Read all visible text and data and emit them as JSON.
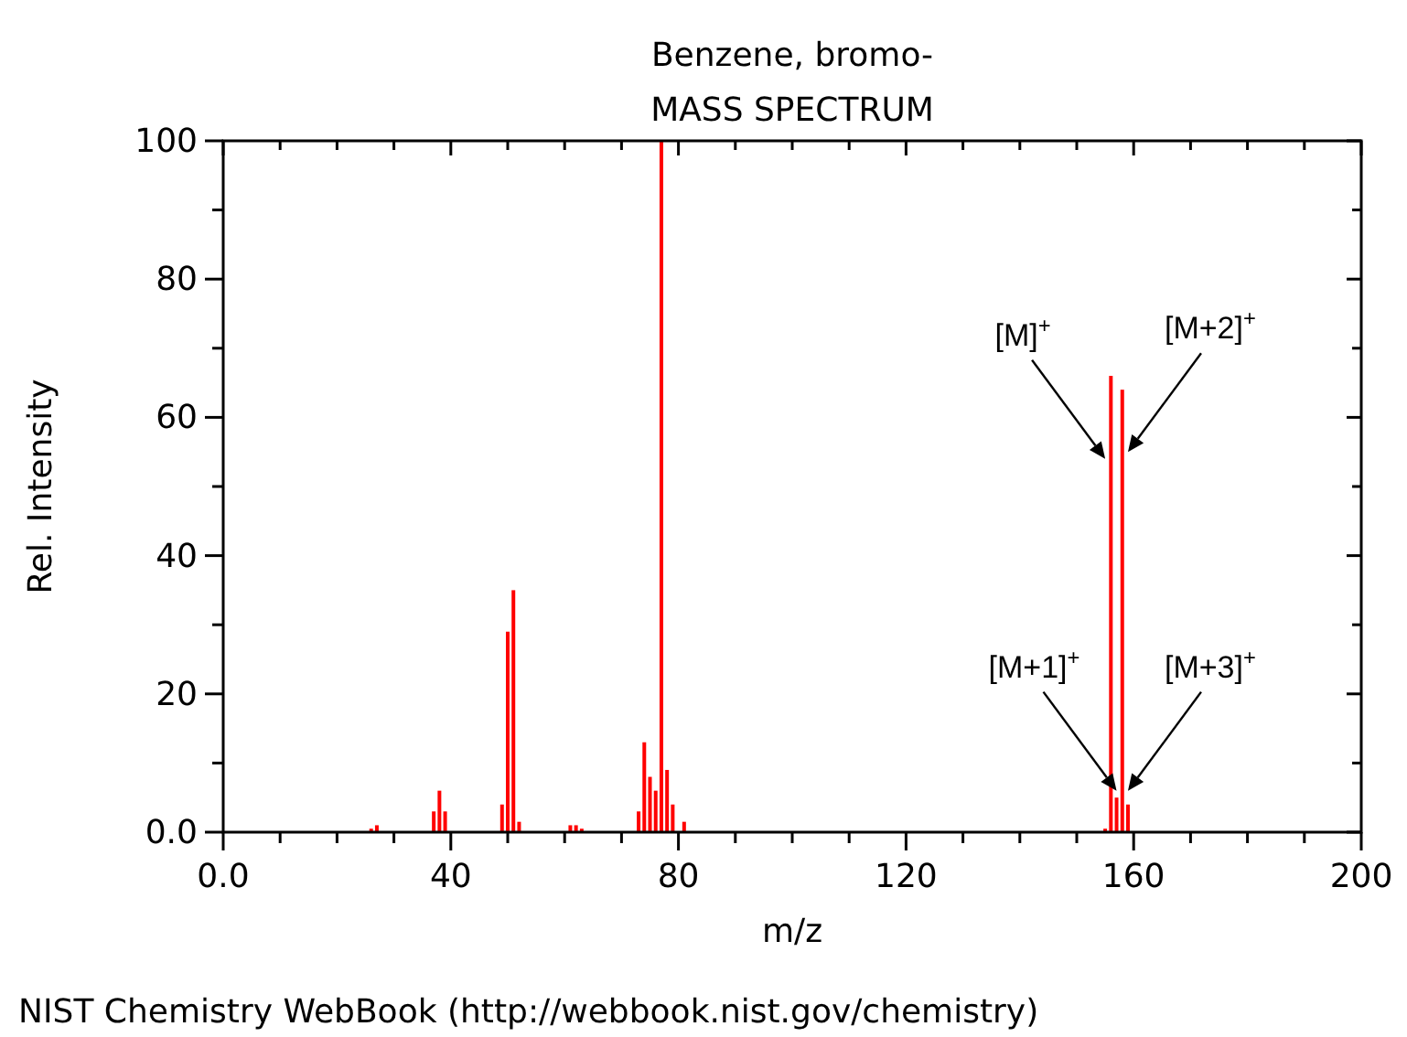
{
  "chart_data": {
    "type": "bar",
    "title": "Benzene, bromo-",
    "subtitle": "MASS SPECTRUM",
    "xlabel": "m/z",
    "ylabel": "Rel. Intensity",
    "x": [
      26,
      27,
      37,
      38,
      39,
      49,
      50,
      51,
      52,
      61,
      62,
      63,
      73,
      74,
      75,
      76,
      77,
      78,
      79,
      81,
      155,
      156,
      157,
      158,
      159
    ],
    "values": [
      0.5,
      1,
      3,
      6,
      3,
      4,
      29,
      35,
      1.5,
      1,
      1,
      0.5,
      3,
      13,
      8,
      6,
      100,
      9,
      4,
      1.5,
      0.5,
      66,
      5,
      64,
      4
    ],
    "color": "#ff0000",
    "xlim": [
      0,
      200
    ],
    "xticks": [
      {
        "value": 0,
        "label": "0.0"
      },
      {
        "value": 10,
        "label": null
      },
      {
        "value": 20,
        "label": null
      },
      {
        "value": 30,
        "label": null
      },
      40,
      {
        "value": 50,
        "label": null
      },
      {
        "value": 60,
        "label": null
      },
      {
        "value": 70,
        "label": null
      },
      80,
      {
        "value": 90,
        "label": null
      },
      {
        "value": 100,
        "label": null
      },
      {
        "value": 110,
        "label": null
      },
      120,
      {
        "value": 130,
        "label": null
      },
      {
        "value": 140,
        "label": null
      },
      {
        "value": 150,
        "label": null
      },
      160,
      {
        "value": 170,
        "label": null
      },
      {
        "value": 180,
        "label": null
      },
      {
        "value": 190,
        "label": null
      },
      200
    ],
    "ylim": [
      0,
      100
    ],
    "yticks": [
      {
        "value": 0,
        "label": "0.0"
      },
      {
        "value": 10,
        "label": null
      },
      20,
      {
        "value": 30,
        "label": null
      },
      40,
      {
        "value": 50,
        "label": null
      },
      60,
      {
        "value": 70,
        "label": null
      },
      80,
      {
        "value": 90,
        "label": null
      },
      100
    ],
    "grid": false,
    "annotations": [
      {
        "text": "[M]$^{+}$",
        "x": 155,
        "y": 54
      },
      {
        "text": "[M+2]$^{+}$",
        "x": 159,
        "y": 55
      },
      {
        "text": "[M+1]$^{+}$",
        "x": 157,
        "y": 6
      },
      {
        "text": "[M+3]$^{+}$",
        "x": 159,
        "y": 6
      },
      "NIST Chemistry WebBook (http://webbook.nist.gov/chemistry)"
    ]
  }
}
